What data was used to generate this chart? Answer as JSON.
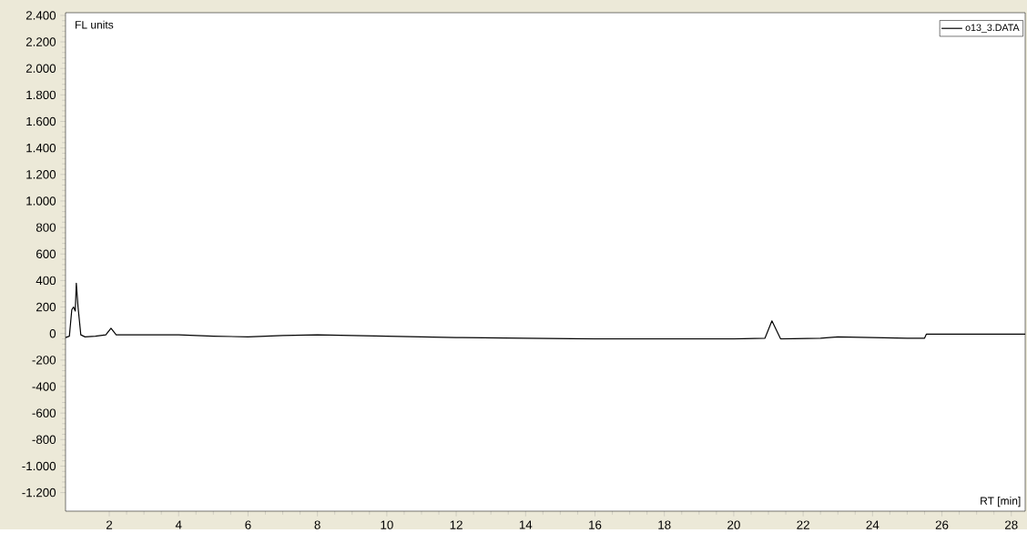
{
  "chart_data": {
    "type": "line",
    "xlabel": "RT [min]",
    "ylabel": "FL units",
    "xlim": [
      0.74,
      28.4
    ],
    "ylim": [
      -1340,
      2420
    ],
    "xticks": [
      2,
      4,
      6,
      8,
      10,
      12,
      14,
      16,
      18,
      20,
      22,
      24,
      26,
      28
    ],
    "yticks": [
      {
        "value": -1200,
        "label": "-1.200"
      },
      {
        "value": -1000,
        "label": "-1.000"
      },
      {
        "value": -800,
        "label": "-800"
      },
      {
        "value": -600,
        "label": "-600"
      },
      {
        "value": -400,
        "label": "-400"
      },
      {
        "value": -200,
        "label": "-200"
      },
      {
        "value": 0,
        "label": "0"
      },
      {
        "value": 200,
        "label": "200"
      },
      {
        "value": 400,
        "label": "400"
      },
      {
        "value": 600,
        "label": "600"
      },
      {
        "value": 800,
        "label": "800"
      },
      {
        "value": 1000,
        "label": "1.000"
      },
      {
        "value": 1200,
        "label": "1.200"
      },
      {
        "value": 1400,
        "label": "1.400"
      },
      {
        "value": 1600,
        "label": "1.600"
      },
      {
        "value": 1800,
        "label": "1.800"
      },
      {
        "value": 2000,
        "label": "2.000"
      },
      {
        "value": 2200,
        "label": "2.200"
      },
      {
        "value": 2400,
        "label": "2.400"
      }
    ],
    "grid": false,
    "legend": "top right",
    "marker": "none",
    "line_style": "solid",
    "series": [
      {
        "name": "o13_3.DATA",
        "color": "#000000",
        "x": [
          0.74,
          0.85,
          0.92,
          0.97,
          1.02,
          1.05,
          1.1,
          1.18,
          1.3,
          1.6,
          1.9,
          2.05,
          2.2,
          3,
          4,
          5,
          6,
          7,
          8,
          9,
          10,
          11,
          12,
          14,
          16,
          18,
          20,
          20.9,
          21.1,
          21.35,
          22.5,
          23,
          24,
          25,
          25.5,
          25.55,
          28.4
        ],
        "values": [
          -30,
          -20,
          180,
          200,
          170,
          380,
          200,
          -10,
          -25,
          -20,
          -10,
          40,
          -10,
          -10,
          -10,
          -20,
          -25,
          -15,
          -10,
          -15,
          -20,
          -25,
          -30,
          -35,
          -40,
          -40,
          -40,
          -35,
          95,
          -40,
          -35,
          -25,
          -30,
          -35,
          -35,
          -5,
          -5
        ]
      }
    ]
  }
}
